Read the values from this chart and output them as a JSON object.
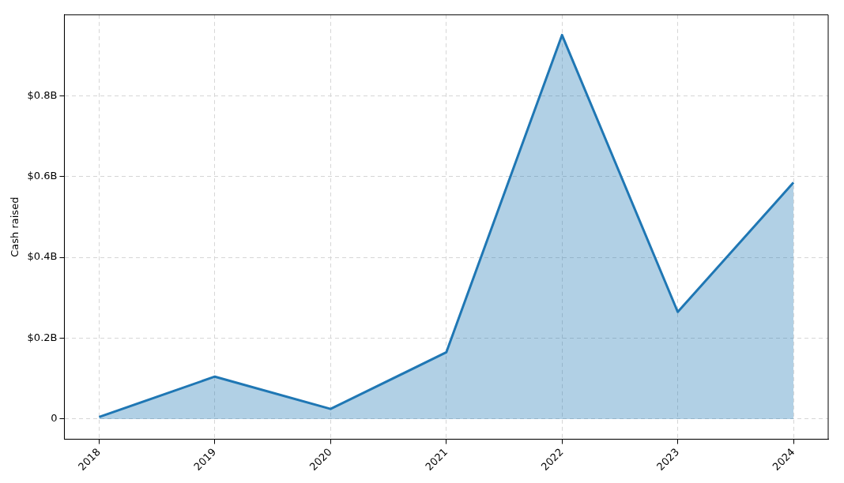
{
  "chart_data": {
    "type": "area",
    "ylabel": "Cash raised",
    "x": [
      2018,
      2019,
      2020,
      2021,
      2022,
      2023,
      2024
    ],
    "series": [
      {
        "color": "#1f77b4",
        "values": [
          0.005,
          0.105,
          0.025,
          0.165,
          0.95,
          0.265,
          0.585
        ]
      }
    ],
    "xlim": [
      2017.7,
      2024.3
    ],
    "xticks": [
      2018,
      2019,
      2020,
      2021,
      2022,
      2023,
      2024
    ],
    "ylim": [
      -0.05,
      1.0
    ],
    "yticks": [
      0,
      {
        "value": 0.2,
        "label": "$0.2B"
      },
      {
        "value": 0.4,
        "label": "$0.4B"
      },
      {
        "value": 0.6,
        "label": "$0.6B"
      },
      {
        "value": 0.8,
        "label": "$0.8B"
      }
    ],
    "grid": true,
    "line_style": "solid",
    "marker": "none"
  }
}
